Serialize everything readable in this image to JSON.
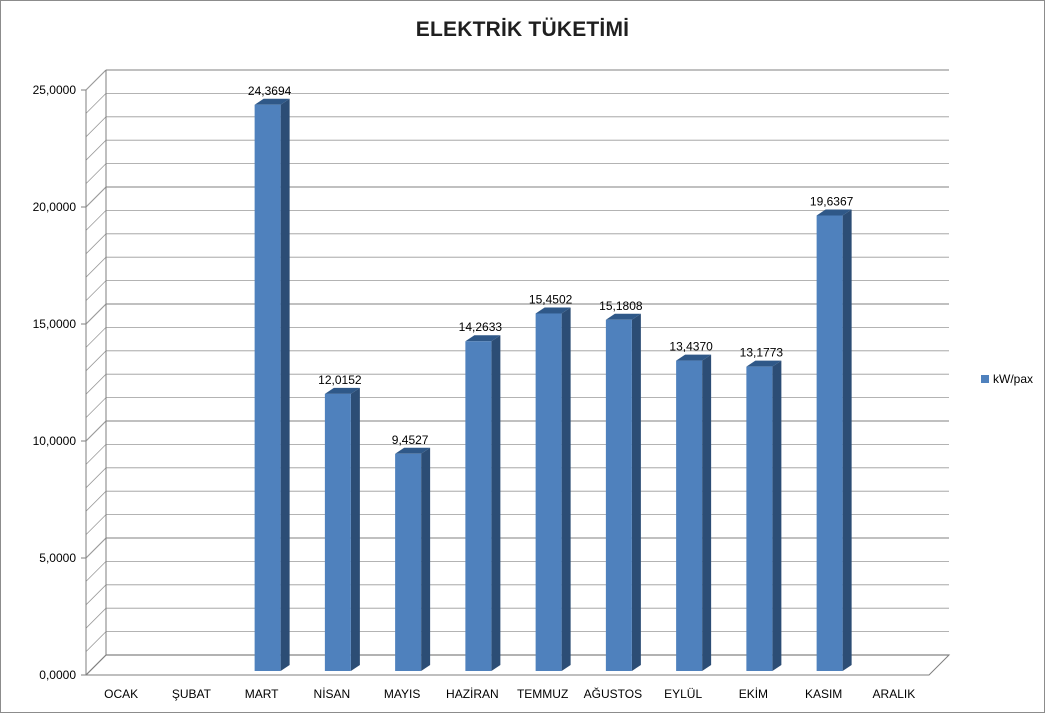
{
  "chart_data": {
    "type": "bar",
    "title": "ELEKTRİK TÜKETİMİ",
    "categories": [
      "OCAK",
      "ŞUBAT",
      "MART",
      "NİSAN",
      "MAYIS",
      "HAZİRAN",
      "TEMMUZ",
      "AĞUSTOS",
      "EYLÜL",
      "EKİM",
      "KASIM",
      "ARALIK"
    ],
    "series": [
      {
        "name": "kW/pax",
        "values": [
          null,
          null,
          24.3694,
          12.0152,
          9.4527,
          14.2633,
          15.4502,
          15.1808,
          13.437,
          13.1773,
          19.6367,
          null
        ],
        "labels": [
          "",
          "",
          "24,3694",
          "12,0152",
          "9,4527",
          "14,2633",
          "15,4502",
          "15,1808",
          "13,4370",
          "13,1773",
          "19,6367",
          ""
        ]
      }
    ],
    "yticks": [
      0,
      5,
      10,
      15,
      20,
      25
    ],
    "ytick_labels": [
      "0,0000",
      "5,0000",
      "10,0000",
      "15,0000",
      "20,0000",
      "25,0000"
    ],
    "ylim": [
      0,
      25
    ],
    "grid": true,
    "legend_position": "right",
    "colors": {
      "bar_front": "#4f81bd",
      "bar_side": "#2c4d75",
      "bar_top": "#2f5888",
      "grid": "#9a9a9a"
    }
  }
}
